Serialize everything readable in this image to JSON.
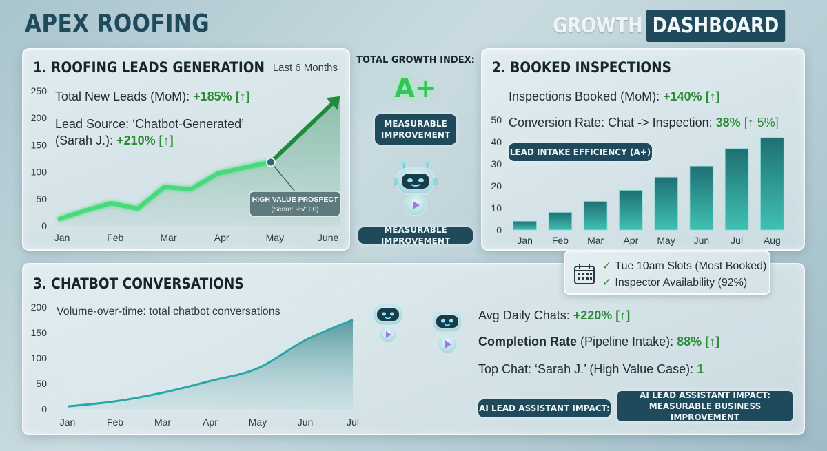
{
  "header": {
    "brand": "APEX ROOFING",
    "dashboard_word1": "GROWTH",
    "dashboard_word2": "DASHBOARD"
  },
  "center": {
    "growth_index_label": "TOTAL GROWTH INDEX:",
    "grade": "A+",
    "badge_top": "MEASURABLE IMPROVEMENT",
    "badge_bottom": "MEASURABLE IMPROVEMENT"
  },
  "leads_panel": {
    "title": "1. ROOFING LEADS GENERATION",
    "period": "Last 6 Months",
    "stat1_label": "Total New Leads (MoM): ",
    "stat1_value": "+185% [↑]",
    "stat2_line1": "Lead Source: ‘Chatbot-Generated’",
    "stat2_label": "(Sarah J.): ",
    "stat2_value": "+210% [↑]",
    "callout_title": "HIGH VALUE PROSPECT",
    "callout_sub": "(Score: 95/100)"
  },
  "inspections_panel": {
    "title": "2. BOOKED INSPECTIONS",
    "stat1_label": "Inspections Booked (MoM): ",
    "stat1_value": "+140% [↑]",
    "stat2_label": "Conversion Rate: Chat -> Inspection: ",
    "stat2_value": "38%",
    "stat2_delta": "[↑ 5%]",
    "badge": "LEAD INTAKE EFFICIENCY (A+)"
  },
  "availability": {
    "line1": "Tue 10am Slots (Most Booked)",
    "line2": "Inspector Availability (92%)",
    "icon": "calendar-icon"
  },
  "chatbot_panel": {
    "title": "3. CHATBOT CONVERSATIONS",
    "subtitle": "Volume-over-time: total chatbot conversations",
    "stat1_label": "Avg Daily Chats: ",
    "stat1_value": "+220% [↑]",
    "stat2_bold": "Completion Rate",
    "stat2_label": " (Pipeline Intake): ",
    "stat2_value": "88% [↑]",
    "stat3_label": "Top Chat: ‘Sarah J.’ (High Value Case): ",
    "stat3_value": "1",
    "impact_label": "AI LEAD ASSISTANT IMPACT:",
    "impact_box_line1": "AI LEAD ASSISTANT IMPACT:",
    "impact_box_line2": "MEASURABLE BUSINESS IMPROVEMENT"
  },
  "colors": {
    "brand": "#1f4a5c",
    "positive": "#2f8b3a",
    "leads_line": "#47d97a",
    "bars": "#2aa39a",
    "area": "#2e8a91"
  },
  "chart_data": [
    {
      "type": "line",
      "x": [
        "Jan",
        "Feb",
        "Mar",
        "Apr",
        "May",
        "June"
      ],
      "y_points": [
        [
          0,
          12
        ],
        [
          0.5,
          28
        ],
        [
          1,
          42
        ],
        [
          1.5,
          32
        ],
        [
          2,
          72
        ],
        [
          2.5,
          68
        ],
        [
          3,
          97
        ],
        [
          3.5,
          108
        ],
        [
          4,
          118
        ]
      ],
      "trend_arrow_to": [
        5.3,
        240
      ],
      "highlight_point": [
        4,
        118
      ],
      "yticks": [
        0,
        50,
        100,
        150,
        200,
        250
      ],
      "ylim": [
        0,
        250
      ]
    },
    {
      "type": "bar",
      "categories": [
        "Jan",
        "Feb",
        "Mar",
        "Apr",
        "May",
        "Jun",
        "Jul",
        "Aug"
      ],
      "values": [
        4,
        8,
        13,
        18,
        24,
        29,
        37,
        42
      ],
      "yticks": [
        0,
        10,
        20,
        30,
        40,
        50
      ],
      "ylim": [
        0,
        50
      ]
    },
    {
      "type": "area",
      "x": [
        "Jan",
        "Feb",
        "Mar",
        "Apr",
        "May",
        "Jun",
        "Jul"
      ],
      "values": [
        5,
        15,
        32,
        55,
        80,
        135,
        175
      ],
      "yticks": [
        0,
        50,
        100,
        150,
        200
      ],
      "ylim": [
        0,
        200
      ]
    }
  ]
}
